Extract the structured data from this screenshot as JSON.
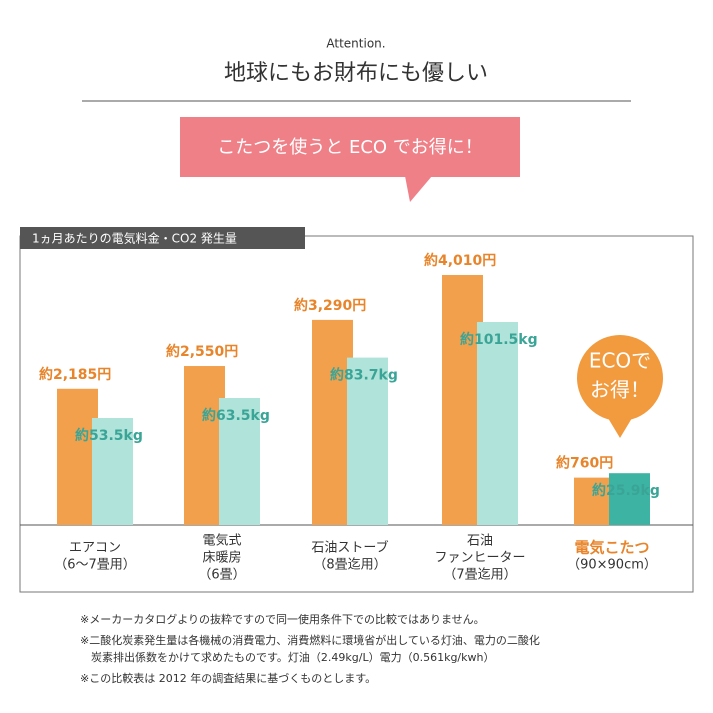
{
  "header": {
    "kicker": "Attention.",
    "title": "地球にもお財布にも優しい"
  },
  "banner": "こたつを使うと ECO でお得に！",
  "badge": [
    "ECOで",
    "お得！"
  ],
  "chart_data": {
    "type": "bar",
    "title": "1ヵ月あたりの電気料金・CO2 発生量",
    "categories": [
      [
        "エアコン",
        "（6〜7畳用）"
      ],
      [
        "電気式",
        "床暖房",
        "（6畳）"
      ],
      [
        "石油ストーブ",
        "（8畳迄用）"
      ],
      [
        "石油",
        "ファンヒーター",
        "（7畳迄用）"
      ],
      [
        "電気こたつ",
        "（90×90cm）"
      ]
    ],
    "series": [
      {
        "name": "電気料金",
        "color": "#f2a04c",
        "label_color": "#e8842a",
        "values": [
          2185,
          2550,
          3290,
          4010,
          760
        ],
        "value_labels": [
          "約2,185円",
          "約2,550円",
          "約3,290円",
          "約4,010円",
          "約760円"
        ]
      },
      {
        "name": "CO2 発生量",
        "color": "#b0e3d9",
        "highlight_color": "#3db3a4",
        "label_color": "#3aa597",
        "values": [
          53.5,
          63.5,
          83.7,
          101.5,
          25.9
        ],
        "value_labels": [
          "約53.5kg",
          "約63.5kg",
          "約83.7kg",
          "約101.5kg",
          "約25.9kg"
        ]
      }
    ]
  },
  "footnotes": [
    [
      "※メーカーカタログよりの抜粋ですので同一使用条件下での比較ではありません。"
    ],
    [
      "※二酸化炭素発生量は各機械の消費電力、消費燃料に環境省が出している灯油、電力の二酸化",
      "　炭素排出係数をかけて求めたものです。灯油（2.49kg/L）電力（0.561kg/kwh）"
    ],
    [
      "※この比較表は 2012 年の調査結果に基づくものとします。"
    ]
  ]
}
